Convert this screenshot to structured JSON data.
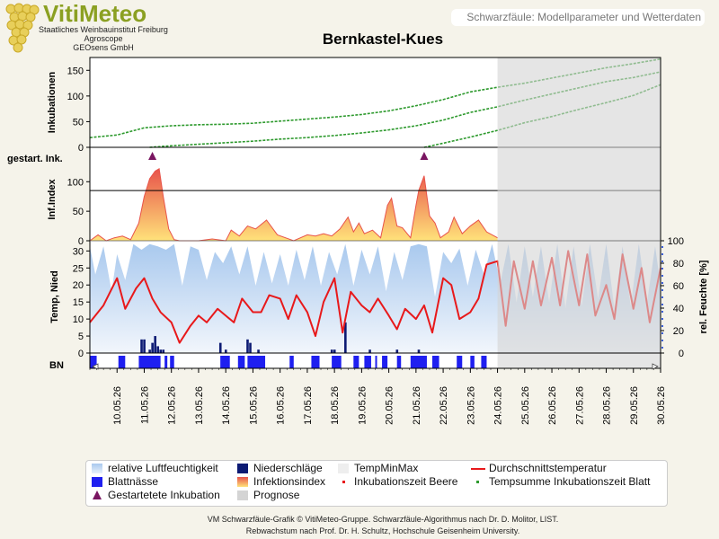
{
  "logo": {
    "name": "VitiMeteo",
    "line1": "Staatliches Weinbauinstitut Freiburg",
    "line2": "Agroscope",
    "line3": "GEOsens GmbH"
  },
  "header": {
    "subtitle": "Schwarzfäule: Modellparameter und Wetterdaten"
  },
  "colors": {
    "green_series": "#2e9a2e",
    "temp_line": "#e8191b",
    "forecast_bg": "#d4d4d4",
    "humidity": "#a9c9ee",
    "rain": "#0c1a73",
    "leafwet": "#1f1ff0",
    "infection_top": "#e8534a",
    "infection_fill": "#ffe27a",
    "marker": "#7a1661"
  },
  "chart_data": {
    "type": "line",
    "title": "Bernkastel-Kues",
    "x_labels": [
      "10.05.26",
      "11.05.26",
      "12.05.26",
      "13.05.26",
      "14.05.26",
      "15.05.26",
      "16.05.26",
      "17.05.26",
      "18.05.26",
      "19.05.26",
      "20.05.26",
      "21.05.26",
      "22.05.26",
      "23.05.26",
      "24.05.26",
      "25.05.26",
      "26.05.26",
      "27.05.26",
      "28.05.26",
      "29.05.26",
      "30.05.26"
    ],
    "forecast_start": "23.05.26 24:00",
    "incubation": {
      "ylabel": "Inkubationen",
      "ylim": [
        0,
        175
      ],
      "yticks": [
        0,
        50,
        100,
        150
      ],
      "series": [
        {
          "x": [
            9.0,
            10.0,
            11.0,
            12.0,
            13.0,
            14.0,
            15.0,
            16.0,
            17.0,
            18.0,
            19.0,
            20.0,
            21.0,
            22.0,
            23.0,
            24.0,
            25.0,
            26.0,
            27.0,
            28.0,
            29.0,
            30.0
          ],
          "y": [
            19,
            24,
            38,
            42,
            44,
            45,
            47,
            51,
            55,
            59,
            64,
            71,
            81,
            93,
            108,
            117,
            125,
            135,
            145,
            155,
            163,
            172
          ]
        },
        {
          "x": [
            11.2,
            12.0,
            13.0,
            14.0,
            15.0,
            16.0,
            17.0,
            18.0,
            19.0,
            20.0,
            21.0,
            22.0,
            23.0,
            24.0,
            25.0,
            26.0,
            27.0,
            28.0,
            29.0,
            30.0
          ],
          "y": [
            0,
            3,
            6,
            9,
            12,
            16,
            19,
            23,
            28,
            34,
            42,
            53,
            68,
            79,
            92,
            104,
            116,
            128,
            136,
            147
          ]
        },
        {
          "x": [
            21.3,
            22.0,
            23.0,
            24.0,
            25.0,
            26.0,
            27.0,
            28.0,
            29.0,
            30.0
          ],
          "y": [
            0,
            8,
            20,
            33,
            48,
            60,
            74,
            87,
            101,
            122
          ]
        }
      ]
    },
    "started_incubation": {
      "label": "gestart. Ink.",
      "dates": [
        11.3,
        21.3
      ]
    },
    "infection_index": {
      "ylabel": "Inf.Index",
      "ylim": [
        0,
        140
      ],
      "yticks": [
        0,
        50,
        100
      ],
      "threshold": 85,
      "x": [
        9.0,
        9.3,
        9.6,
        9.9,
        10.2,
        10.5,
        10.8,
        11.0,
        11.2,
        11.4,
        11.55,
        11.7,
        11.9,
        12.1,
        12.3,
        13.0,
        13.5,
        14.0,
        14.2,
        14.5,
        14.8,
        15.1,
        15.5,
        15.9,
        16.5,
        17.0,
        17.3,
        17.6,
        17.9,
        18.2,
        18.5,
        18.7,
        18.9,
        19.1,
        19.4,
        19.7,
        19.95,
        20.1,
        20.3,
        20.5,
        20.8,
        21.0,
        21.1,
        21.3,
        21.5,
        21.7,
        21.9,
        22.2,
        22.4,
        22.7,
        23.0,
        23.3,
        23.6,
        24.0
      ],
      "y": [
        0,
        10,
        0,
        5,
        8,
        2,
        30,
        75,
        105,
        118,
        122,
        75,
        20,
        2,
        0,
        0,
        3,
        0,
        18,
        8,
        25,
        20,
        35,
        10,
        0,
        10,
        8,
        12,
        8,
        20,
        40,
        15,
        30,
        12,
        18,
        5,
        60,
        72,
        25,
        22,
        5,
        60,
        85,
        110,
        42,
        30,
        5,
        15,
        40,
        12,
        25,
        35,
        15,
        5
      ]
    },
    "weather": {
      "ylabel_left": "Temp, Nied",
      "ylabel_right": "rel. Feuchte [%]",
      "ylim_left": [
        0,
        33
      ],
      "yticks_left": [
        0,
        5,
        10,
        15,
        20,
        25,
        30
      ],
      "ylim_right": [
        0,
        100
      ],
      "yticks_right": [
        0,
        20,
        40,
        60,
        80,
        100
      ],
      "temperature": {
        "x": [
          9.0,
          9.5,
          10.0,
          10.3,
          10.7,
          11.0,
          11.3,
          11.6,
          12.0,
          12.3,
          12.7,
          13.0,
          13.3,
          13.7,
          14.0,
          14.3,
          14.6,
          15.0,
          15.3,
          15.6,
          16.0,
          16.3,
          16.6,
          17.0,
          17.3,
          17.6,
          18.0,
          18.3,
          18.6,
          19.0,
          19.3,
          19.6,
          20.0,
          20.3,
          20.6,
          21.0,
          21.3,
          21.6,
          22.0,
          22.3,
          22.6,
          23.0,
          23.3,
          23.6,
          24.0,
          24.3,
          24.6,
          25.0,
          25.3,
          25.6,
          26.0,
          26.3,
          26.6,
          27.0,
          27.3,
          27.6,
          28.0,
          28.3,
          28.6,
          29.0,
          29.3,
          29.6,
          30.0
        ],
        "y": [
          9,
          14,
          22,
          13,
          19,
          22,
          16,
          12,
          9,
          3,
          8,
          11,
          9,
          13,
          11,
          9,
          16,
          12,
          12,
          17,
          16,
          10,
          17,
          12,
          5,
          15,
          22,
          6,
          18,
          14,
          12,
          16,
          11,
          7,
          13,
          10,
          14,
          6,
          22,
          20,
          10,
          12,
          16,
          26,
          27,
          8,
          27,
          13,
          27,
          14,
          28,
          14,
          30,
          14,
          29,
          11,
          20,
          10,
          29,
          13,
          25,
          9,
          25
        ]
      },
      "humidity": {
        "x": [
          9.0,
          9.2,
          9.5,
          9.8,
          10.0,
          10.3,
          10.6,
          10.9,
          11.2,
          11.5,
          11.8,
          12.1,
          12.4,
          12.7,
          13.0,
          13.3,
          13.6,
          13.9,
          14.2,
          14.5,
          14.8,
          15.1,
          15.4,
          15.7,
          16.0,
          16.3,
          16.6,
          16.9,
          17.2,
          17.5,
          17.8,
          18.1,
          18.4,
          18.7,
          19.0,
          19.3,
          19.6,
          19.9,
          20.2,
          20.5,
          20.8,
          21.1,
          21.4,
          21.7,
          22.0,
          22.3,
          22.6,
          22.9,
          23.2,
          23.5,
          23.8,
          24.1,
          24.4,
          24.7,
          25.0,
          25.3,
          25.6,
          25.9,
          26.2,
          26.5,
          26.8,
          27.1,
          27.4,
          27.7,
          28.0,
          28.3,
          28.6,
          28.9,
          29.2,
          29.5,
          29.8,
          30.0
        ],
        "y": [
          95,
          70,
          95,
          55,
          88,
          65,
          97,
          92,
          97,
          95,
          92,
          97,
          60,
          95,
          92,
          65,
          90,
          80,
          95,
          70,
          95,
          60,
          90,
          62,
          88,
          60,
          92,
          65,
          95,
          60,
          90,
          70,
          97,
          60,
          92,
          70,
          95,
          55,
          90,
          65,
          95,
          97,
          95,
          50,
          90,
          80,
          93,
          60,
          92,
          70,
          97,
          62,
          97,
          45,
          95,
          50,
          95,
          45,
          97,
          40,
          95,
          42,
          97,
          48,
          97,
          40,
          95,
          42,
          97,
          45,
          95,
          60
        ]
      },
      "rain": [
        {
          "x": 10.9,
          "v": 4
        },
        {
          "x": 11.0,
          "v": 4
        },
        {
          "x": 11.2,
          "v": 1
        },
        {
          "x": 11.3,
          "v": 3
        },
        {
          "x": 11.4,
          "v": 5
        },
        {
          "x": 11.5,
          "v": 2
        },
        {
          "x": 11.6,
          "v": 1
        },
        {
          "x": 11.7,
          "v": 1
        },
        {
          "x": 13.8,
          "v": 3
        },
        {
          "x": 14.0,
          "v": 1
        },
        {
          "x": 14.8,
          "v": 4
        },
        {
          "x": 14.9,
          "v": 3
        },
        {
          "x": 15.2,
          "v": 1
        },
        {
          "x": 17.9,
          "v": 1
        },
        {
          "x": 18.0,
          "v": 1
        },
        {
          "x": 18.4,
          "v": 9
        },
        {
          "x": 19.3,
          "v": 1
        },
        {
          "x": 20.3,
          "v": 1
        },
        {
          "x": 21.1,
          "v": 1
        }
      ]
    },
    "leaf_wetness": {
      "label": "BN",
      "intervals": [
        [
          9.0,
          9.25
        ],
        [
          10.05,
          10.3
        ],
        [
          10.8,
          11.6
        ],
        [
          11.75,
          11.85
        ],
        [
          11.95,
          12.1
        ],
        [
          13.8,
          14.15
        ],
        [
          14.45,
          14.7
        ],
        [
          14.8,
          15.45
        ],
        [
          16.35,
          16.5
        ],
        [
          17.15,
          17.45
        ],
        [
          17.9,
          18.25
        ],
        [
          18.7,
          18.9
        ],
        [
          19.1,
          19.35
        ],
        [
          19.5,
          19.55
        ],
        [
          19.75,
          19.95
        ],
        [
          20.3,
          20.45
        ],
        [
          20.8,
          21.4
        ],
        [
          21.6,
          21.85
        ],
        [
          22.5,
          22.7
        ],
        [
          23.0,
          23.15
        ],
        [
          23.4,
          23.6
        ]
      ]
    }
  },
  "legend": {
    "items": [
      {
        "key": "humidity",
        "label": "relative Luftfeuchtigkeit"
      },
      {
        "key": "rain",
        "label": "Niederschläge"
      },
      {
        "key": "tempminmax",
        "label": "TempMinMax"
      },
      {
        "key": "temp",
        "label": "Durchschnittstemperatur"
      },
      {
        "key": "leafwet",
        "label": "Blattnässe"
      },
      {
        "key": "infection",
        "label": "Infektionsindex"
      },
      {
        "key": "incub_berry",
        "label": "Inkubationszeit Beere"
      },
      {
        "key": "incub_leaf",
        "label": "Tempsumme Inkubationszeit Blatt"
      },
      {
        "key": "marker",
        "label": "Gestartetete Inkubation"
      },
      {
        "key": "forecast",
        "label": "Prognose"
      }
    ]
  },
  "footer": {
    "line1": "VM Schwarzfäule-Grafik © VitiMeteo-Gruppe. Schwarzfäule-Algorithmus nach Dr. D. Molitor, LIST.",
    "line2": "Rebwachstum nach Prof. Dr. H. Schultz, Hochschule Geisenheim University."
  }
}
